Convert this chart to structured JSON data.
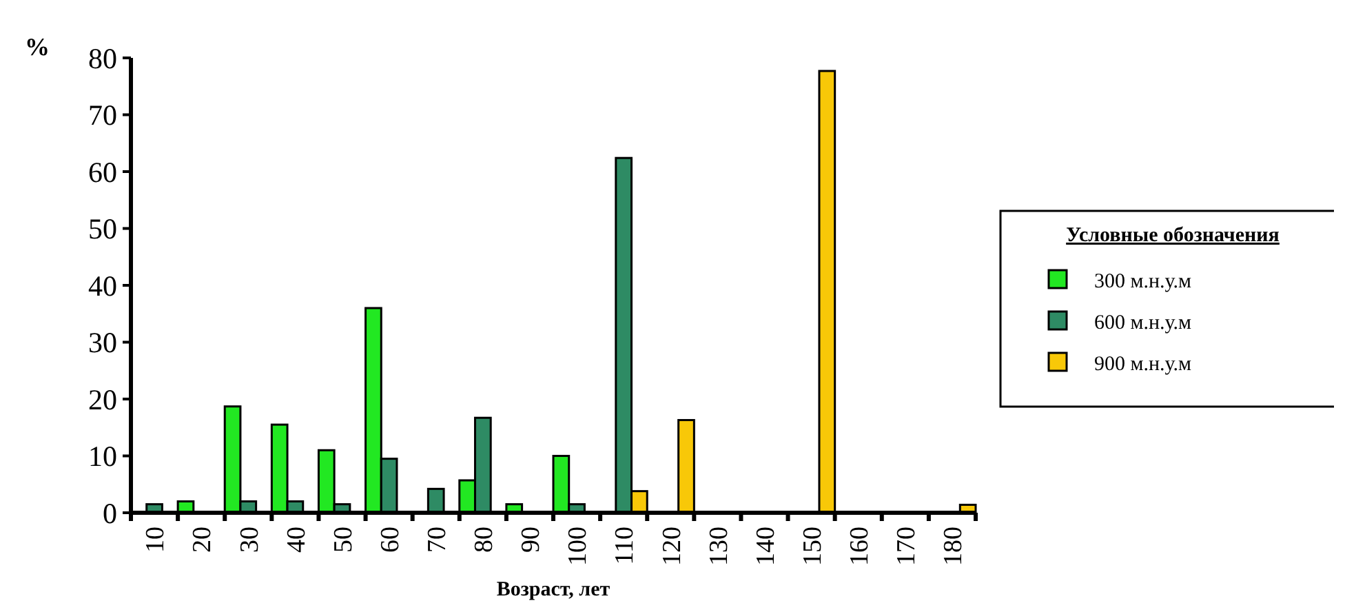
{
  "chart_data": {
    "type": "bar",
    "xlabel": "Возраст, лет",
    "ylabel": "%",
    "legend_title": "Условные обозначения",
    "legend": "right",
    "categories": [
      "10",
      "20",
      "30",
      "40",
      "50",
      "60",
      "70",
      "80",
      "90",
      "100",
      "110",
      "120",
      "130",
      "140",
      "150",
      "160",
      "170",
      "180"
    ],
    "ylim": [
      0,
      80
    ],
    "yticks": [
      0,
      10,
      20,
      30,
      40,
      50,
      60,
      70,
      80
    ],
    "grid": false,
    "series": [
      {
        "name": "300 м.н.у.м",
        "color": "#22e822",
        "values": [
          0,
          2,
          18.7,
          15.5,
          11,
          36,
          0,
          5.7,
          1.5,
          10,
          0,
          0,
          0,
          0,
          0,
          0,
          0,
          0
        ]
      },
      {
        "name": "600 м.н.у.м",
        "color": "#2e8b64",
        "values": [
          1.5,
          0,
          2,
          2,
          1.5,
          9.5,
          4.2,
          16.7,
          0,
          1.5,
          62.4,
          0,
          0,
          0,
          0,
          0,
          0,
          0
        ]
      },
      {
        "name": "900 м.н.у.м",
        "color": "#f8c808",
        "values": [
          0,
          0,
          0,
          0,
          0,
          0,
          0,
          0,
          0,
          0,
          3.8,
          16.3,
          0,
          0,
          77.7,
          0,
          0,
          1.4
        ]
      }
    ]
  }
}
